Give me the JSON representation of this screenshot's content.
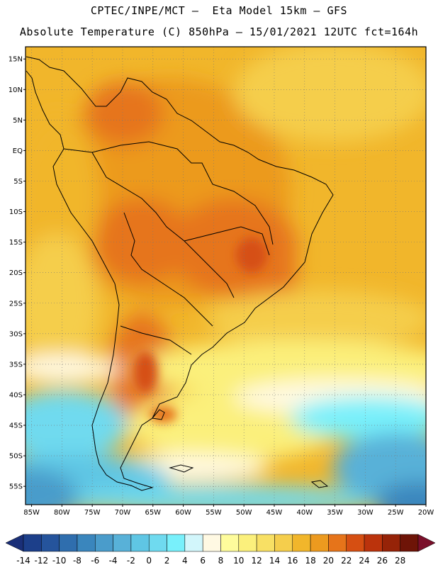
{
  "header": {
    "line1": "CPTEC/INPE/MCT –  Eta Model 15km – GFS",
    "line2": "Absolute Temperature (C) 850hPa – 15/01/2021 12UTC fct=164h"
  },
  "map": {
    "lon_labels": [
      "85W",
      "80W",
      "75W",
      "70W",
      "65W",
      "60W",
      "55W",
      "50W",
      "45W",
      "40W",
      "35W",
      "30W",
      "25W",
      "20W"
    ],
    "lat_labels": [
      "15N",
      "10N",
      "5N",
      "EQ",
      "5S",
      "10S",
      "15S",
      "20S",
      "25S",
      "30S",
      "35S",
      "40S",
      "45S",
      "50S",
      "55S"
    ],
    "lon_values": [
      -85,
      -80,
      -75,
      -70,
      -65,
      -60,
      -55,
      -50,
      -45,
      -40,
      -35,
      -30,
      -25,
      -20
    ],
    "lat_values": [
      15,
      10,
      5,
      0,
      -5,
      -10,
      -15,
      -20,
      -25,
      -30,
      -35,
      -40,
      -45,
      -50,
      -55
    ],
    "lon_range": [
      -86,
      -20
    ],
    "lat_range": [
      -58,
      17
    ],
    "grid": "dotted"
  },
  "colorbar": {
    "labels": [
      "-14",
      "-12",
      "-10",
      "-8",
      "-6",
      "-4",
      "-2",
      "0",
      "2",
      "4",
      "6",
      "8",
      "10",
      "12",
      "14",
      "16",
      "18",
      "20",
      "22",
      "24",
      "26",
      "28"
    ],
    "colors": [
      "#1c3f8a",
      "#25549c",
      "#2f6eae",
      "#3a86bd",
      "#4a9ccb",
      "#58b1d8",
      "#5fc6e4",
      "#6fdaef",
      "#78f0fb",
      "#d2f6fb",
      "#fff9e3",
      "#fefc9c",
      "#fbf07c",
      "#f8e064",
      "#f5ce4c",
      "#f1b62b",
      "#ec9a1f",
      "#e6741a",
      "#d64f12",
      "#bb330c",
      "#962308",
      "#6e1407"
    ],
    "under_color": "#1a2f78",
    "over_color": "#7a0f2a"
  }
}
